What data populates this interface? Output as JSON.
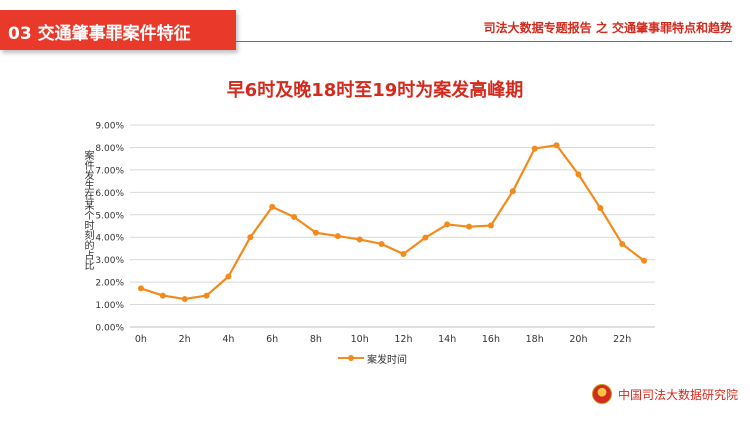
{
  "header": {
    "section_label": "03  交通肇事罪案件特征",
    "report_title": "司法大数据专题报告 之 交通肇事罪特点和趋势"
  },
  "footer": {
    "org_name": "中国司法大数据研究院",
    "emblem_icon": "court-emblem-icon"
  },
  "colors": {
    "accent": "#e8392a",
    "title": "#d42a1e",
    "series": "#f28b1c",
    "grid": "#d9d9d9"
  },
  "chart_data": {
    "type": "line",
    "title": "早6时及晚18时至19时为案发高峰期",
    "xlabel": "",
    "ylabel": "案件发生在某个时刻的占比",
    "x": [
      "0h",
      "1h",
      "2h",
      "3h",
      "4h",
      "5h",
      "6h",
      "7h",
      "8h",
      "9h",
      "10h",
      "11h",
      "12h",
      "13h",
      "14h",
      "15h",
      "16h",
      "17h",
      "18h",
      "19h",
      "20h",
      "21h",
      "22h",
      "23h"
    ],
    "x_tick_labels": [
      "0h",
      "2h",
      "4h",
      "6h",
      "8h",
      "10h",
      "12h",
      "14h",
      "16h",
      "18h",
      "20h",
      "22h"
    ],
    "y_tick_labels": [
      "0.00%",
      "1.00%",
      "2.00%",
      "3.00%",
      "4.00%",
      "5.00%",
      "6.00%",
      "7.00%",
      "8.00%",
      "9.00%"
    ],
    "ylim": [
      0,
      9
    ],
    "y_unit": "%",
    "grid": true,
    "legend_position": "bottom",
    "series": [
      {
        "name": "案发时间",
        "values": [
          1.72,
          1.4,
          1.25,
          1.4,
          2.25,
          4.0,
          5.35,
          4.9,
          4.2,
          4.05,
          3.9,
          3.7,
          3.25,
          3.98,
          4.57,
          4.47,
          4.52,
          6.05,
          7.95,
          8.1,
          6.8,
          5.3,
          3.7,
          2.95
        ]
      }
    ]
  }
}
